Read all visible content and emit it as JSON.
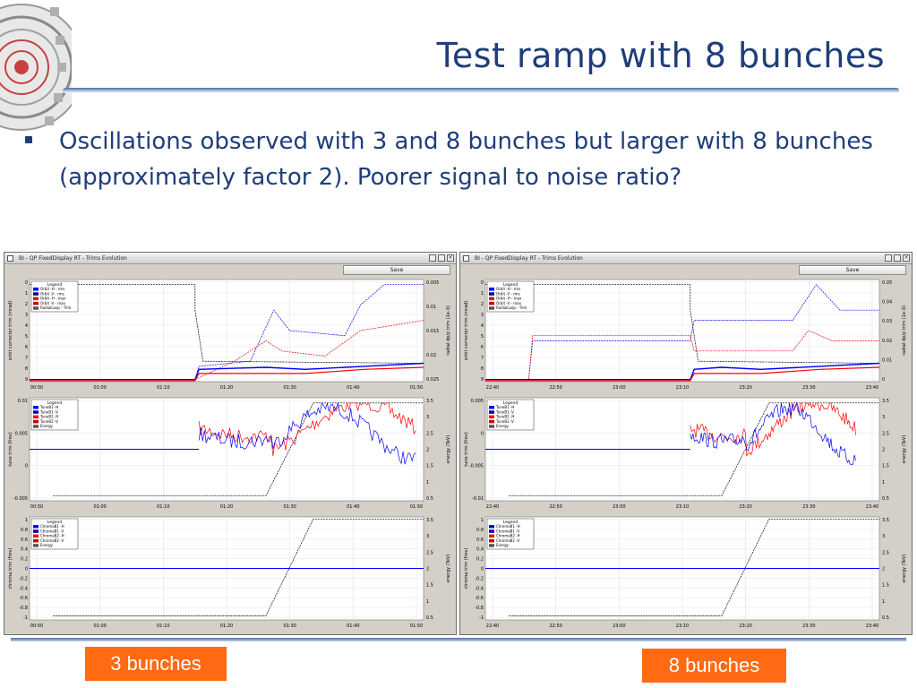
{
  "slide": {
    "title": "Test ramp with 8 bunches",
    "bullet": "Oscillations observed with 3 and 8 bunches but larger with 8 bunches (approximately factor 2). Poorer signal to noise ratio?"
  },
  "windows": {
    "left": {
      "title": "BI - QP FixedDisplay RT - Trims Evolution",
      "save_label": "Save"
    },
    "right": {
      "title": "BI - QP FixedDisplay RT - Trims Evolution",
      "save_label": "Save"
    }
  },
  "labels": {
    "left": "3 bunches",
    "right": "8 bunches"
  },
  "colors": {
    "accent": "#ff6a13",
    "title": "#1f3d7a",
    "trace_blue": "#0000ff",
    "trace_red": "#ff0000"
  },
  "chart_data": [
    {
      "type": "line",
      "panel": "left-top",
      "legend_title": "Legend",
      "legend": [
        "Orbit -H - rms",
        "Orbit -V - rms",
        "Orbit -H - max",
        "Orbit -V - max",
        "RadialLoop - Trim"
      ],
      "ylabel": "orbit corrector trim (mrad)",
      "y2label": "radial dp/p trim (1e-3)",
      "yticks": [
        "0",
        "1",
        "2",
        "3",
        "4",
        "5",
        "6",
        "7",
        "8",
        "9"
      ],
      "y2ticks": [
        "0.005",
        "0.01",
        "0.015",
        "0.02",
        "0.025"
      ],
      "xticks": [
        "00:50",
        "01:00",
        "01:10",
        "01:20",
        "01:30",
        "01:40",
        "01:50"
      ]
    },
    {
      "type": "line",
      "panel": "left-middle",
      "legend_title": "Legend",
      "legend": [
        "TuneB1 -H",
        "TuneB1 -V",
        "TuneB2 -H",
        "TuneB2 -V",
        "Energy"
      ],
      "ylabel": "tune trim (frev)",
      "y2label": "energy (TeV)",
      "yticks": [
        "0.01",
        "0.005",
        "0",
        "-0.005"
      ],
      "y2ticks": [
        "3.5",
        "3",
        "2.5",
        "2",
        "1.5",
        "1",
        "0.5"
      ],
      "xticks": [
        "00:50",
        "01:00",
        "01:10",
        "01:20",
        "01:30",
        "01:40",
        "01:50"
      ]
    },
    {
      "type": "line",
      "panel": "left-bottom",
      "legend_title": "Legend",
      "legend": [
        "ChromaB1 -H",
        "ChromaB1 -V",
        "ChromaB2 -H",
        "ChromaB2 -V",
        "Energy"
      ],
      "ylabel": "chroma trim (frev)",
      "y2label": "energy (TeV)",
      "yticks": [
        "1",
        "0.8",
        "0.6",
        "0.4",
        "0.2",
        "0",
        "-0.2",
        "-0.4",
        "-0.6",
        "-0.8",
        "-1"
      ],
      "y2ticks": [
        "3.5",
        "3",
        "2.5",
        "2",
        "1.5",
        "1",
        "0.5"
      ],
      "xticks": [
        "00:50",
        "01:00",
        "01:10",
        "01:20",
        "01:30",
        "01:40",
        "01:50"
      ]
    },
    {
      "type": "line",
      "panel": "right-top",
      "legend_title": "Legend",
      "legend": [
        "Orbit -H - rms",
        "Orbit -V - rms",
        "Orbit -H - max",
        "Orbit -V - max",
        "RadialLoop - Trim"
      ],
      "ylabel": "orbit corrector trim (mrad)",
      "y2label": "radial dp/p trim (1e-3)",
      "yticks": [
        "0",
        "1",
        "2",
        "3",
        "4",
        "5",
        "6",
        "7",
        "8",
        "9"
      ],
      "y2ticks": [
        "0.05",
        "0.04",
        "0.03",
        "0.02",
        "0.01",
        "0"
      ],
      "xticks": [
        "22:40",
        "22:50",
        "23:00",
        "23:10",
        "23:20",
        "23:30",
        "23:40"
      ]
    },
    {
      "type": "line",
      "panel": "right-middle",
      "legend_title": "Legend",
      "legend": [
        "TuneB1 -H",
        "TuneB1 -V",
        "TuneB2 -H",
        "TuneB2 -V",
        "Energy"
      ],
      "ylabel": "tune trim (frev)",
      "y2label": "energy (TeV)",
      "yticks": [
        "0.005",
        "0",
        "-0.005",
        "-0.01"
      ],
      "y2ticks": [
        "3.5",
        "3",
        "2.5",
        "2",
        "1.5",
        "1",
        "0.5"
      ],
      "xticks": [
        "22:40",
        "22:50",
        "23:00",
        "23:10",
        "23:20",
        "23:30",
        "23:40"
      ]
    },
    {
      "type": "line",
      "panel": "right-bottom",
      "legend_title": "Legend",
      "legend": [
        "ChromaB1 -H",
        "ChromaB1 -V",
        "ChromaB2 -H",
        "ChromaB2 -V",
        "Energy"
      ],
      "ylabel": "chroma trim (frev)",
      "y2label": "energy (TeV)",
      "yticks": [
        "1",
        "0.8",
        "0.6",
        "0.4",
        "0.2",
        "0",
        "-0.2",
        "-0.4",
        "-0.6",
        "-0.8",
        "-1"
      ],
      "y2ticks": [
        "3.5",
        "3",
        "2.5",
        "2",
        "1.5",
        "1",
        "0.5"
      ],
      "xticks": [
        "22:40",
        "22:50",
        "23:00",
        "23:10",
        "23:20",
        "23:30",
        "23:40"
      ]
    }
  ]
}
